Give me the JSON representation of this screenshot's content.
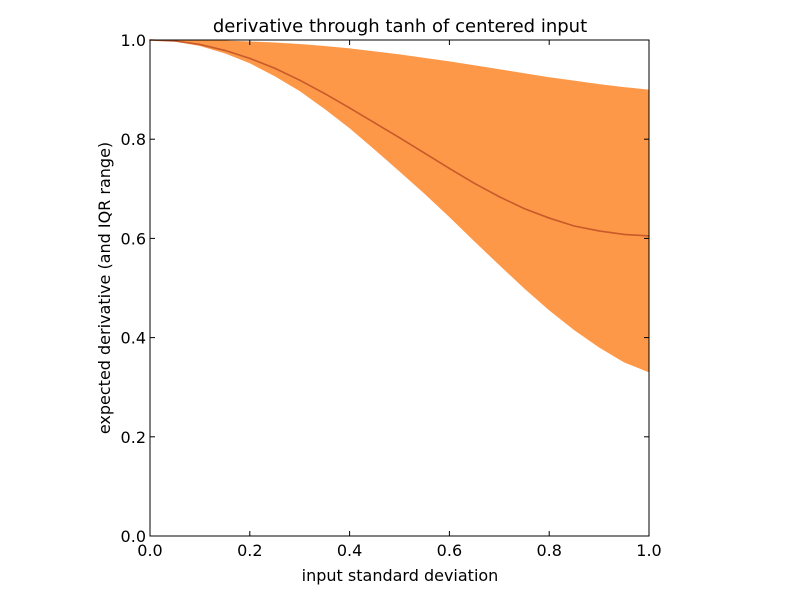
{
  "chart_data": {
    "type": "area",
    "title": "derivative through tanh of centered input",
    "xlabel": "input standard deviation",
    "ylabel": "expected derivative (and IQR range)",
    "xlim": [
      0.0,
      1.0
    ],
    "ylim": [
      0.0,
      1.0
    ],
    "x_ticks": [
      "0.0",
      "0.2",
      "0.4",
      "0.6",
      "0.8",
      "1.0"
    ],
    "y_ticks": [
      "0.0",
      "0.2",
      "0.4",
      "0.6",
      "0.8",
      "1.0"
    ],
    "grid": false,
    "legend": "none",
    "series": [
      {
        "role": "iqr-band",
        "color": "#fd9849",
        "x": [
          0.0,
          0.05,
          0.1,
          0.15,
          0.2,
          0.25,
          0.3,
          0.35,
          0.4,
          0.45,
          0.5,
          0.55,
          0.6,
          0.65,
          0.7,
          0.75,
          0.8,
          0.85,
          0.9,
          0.95,
          1.0
        ],
        "lower": [
          1.0,
          0.997,
          0.988,
          0.973,
          0.953,
          0.927,
          0.897,
          0.861,
          0.822,
          0.779,
          0.735,
          0.69,
          0.643,
          0.594,
          0.546,
          0.499,
          0.455,
          0.415,
          0.38,
          0.35,
          0.33
        ],
        "upper": [
          1.0,
          1.0,
          1.0,
          0.999,
          0.997,
          0.995,
          0.992,
          0.988,
          0.983,
          0.977,
          0.971,
          0.964,
          0.957,
          0.949,
          0.941,
          0.933,
          0.925,
          0.918,
          0.911,
          0.905,
          0.9
        ]
      },
      {
        "role": "expected-derivative",
        "color": "#c95a29",
        "x": [
          0.0,
          0.05,
          0.1,
          0.15,
          0.2,
          0.25,
          0.3,
          0.35,
          0.4,
          0.45,
          0.5,
          0.55,
          0.6,
          0.65,
          0.7,
          0.75,
          0.8,
          0.85,
          0.9,
          0.95,
          1.0
        ],
        "values": [
          1.0,
          0.998,
          0.991,
          0.979,
          0.963,
          0.943,
          0.919,
          0.892,
          0.863,
          0.833,
          0.803,
          0.772,
          0.741,
          0.711,
          0.684,
          0.66,
          0.641,
          0.625,
          0.615,
          0.608,
          0.605
        ]
      }
    ]
  }
}
